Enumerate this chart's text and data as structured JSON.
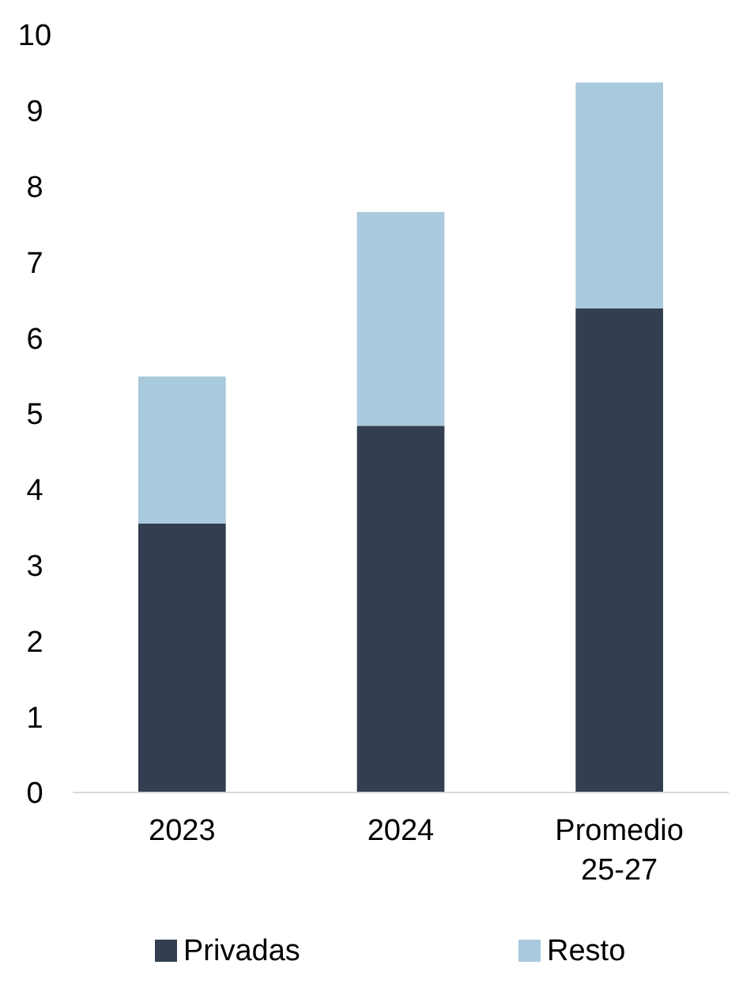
{
  "chart_data": {
    "type": "bar",
    "stacked": true,
    "categories": [
      "2023",
      "2024",
      "Promedio 25-27"
    ],
    "series": [
      {
        "name": "Privadas",
        "color": "#333f50",
        "values": [
          3.55,
          4.84,
          6.39
        ]
      },
      {
        "name": "Resto",
        "color": "#a9c9dc",
        "values": [
          1.94,
          2.82,
          2.98
        ]
      }
    ],
    "ylim": [
      0,
      10
    ],
    "yticks": [
      0,
      1,
      2,
      3,
      4,
      5,
      6,
      7,
      8,
      9,
      10
    ],
    "grid": false,
    "legend": "bottom"
  }
}
